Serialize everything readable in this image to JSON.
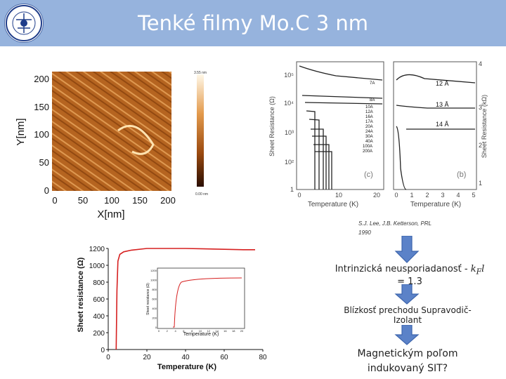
{
  "slide": {
    "title": "Tenké filmy Mo.C 3 nm",
    "logo": {
      "icon": "university-seal-icon",
      "colors": [
        "#1f3d8a",
        "#ffffff"
      ]
    }
  },
  "afm_image": {
    "y_label": "Y[nm]",
    "x_label": "X[nm]",
    "y_ticks": [
      "0",
      "50",
      "100",
      "150",
      "200"
    ],
    "x_ticks": [
      "0",
      "50",
      "100",
      "150",
      "200"
    ],
    "scale_top": "3.55 nm",
    "scale_bottom": "0.00 nm"
  },
  "reference_figure": {
    "y_label_left": "Sheet Resistance (Ω)",
    "y_label_right": "Sheet Resistance (kΩ)",
    "x_label_left": "Temperature (K)",
    "x_label_right": "Temperature (K)",
    "panel_c": "(c)",
    "panel_b": "(b)",
    "left_y_ticks": [
      "1",
      "10²",
      "10³",
      "10⁴",
      "10⁵"
    ],
    "left_x_ticks": [
      "0",
      "10",
      "20"
    ],
    "right_y_ticks": [
      "1",
      "2",
      "3",
      "4"
    ],
    "right_x_ticks": [
      "0",
      "1",
      "2",
      "3",
      "4",
      "5"
    ],
    "thickness_labels_left": [
      "7A",
      "8A",
      "10A",
      "12A",
      "16A",
      "17A",
      "20A",
      "24A",
      "30A",
      "40A",
      "100A",
      "200A"
    ],
    "thickness_labels_right": [
      "12 Å",
      "13 Å",
      "14 Å"
    ]
  },
  "caption": {
    "line1": "S.J. Lee, J.B. Ketterson, PRL",
    "line2": "1990"
  },
  "notes": {
    "disorder": "Intrinzická neusporiadanosť -",
    "kl": "kFl",
    "kl_value": "= 1.3",
    "transition_line1": "Blízkosť prechodu Supravodič-",
    "transition_line2": "Izolant",
    "magnetic_line1": "Magnetickým poľom",
    "magnetic_line2": "indukovaný SIT?"
  },
  "arrow_color": "#5b82c8",
  "chart_data": {
    "type": "line",
    "xlabel": "Temperature (K)",
    "ylabel": "Sheet resistance (Ω)",
    "xlim": [
      0,
      80
    ],
    "ylim": [
      0,
      1200
    ],
    "x_ticks": [
      "0",
      "20",
      "40",
      "60",
      "80"
    ],
    "y_ticks": [
      "0",
      "200",
      "400",
      "600",
      "800",
      "1000",
      "1200"
    ],
    "inset": {
      "xlabel": "Temperature (K)",
      "ylabel": "Sheet resistance (Ω)",
      "x_ticks": [
        "0",
        "2",
        "4",
        "6",
        "8",
        "10",
        "12",
        "14",
        "16",
        "18",
        "20"
      ],
      "y_ticks": [
        "0",
        "200",
        "400",
        "600",
        "800",
        "1000",
        "1200"
      ]
    },
    "series": [
      {
        "color": "#d62020",
        "x": [
          4.1,
          4.5,
          5,
          6,
          8,
          12,
          20,
          30,
          40,
          50,
          60,
          70,
          76
        ],
        "y": [
          0,
          700,
          1050,
          1130,
          1160,
          1180,
          1200,
          1200,
          1200,
          1195,
          1190,
          1185,
          1185
        ]
      }
    ]
  }
}
